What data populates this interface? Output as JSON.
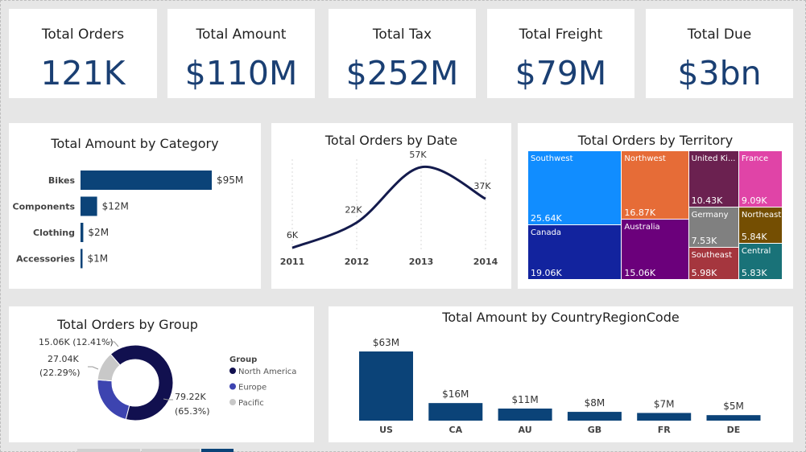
{
  "kpis": [
    {
      "title": "Total Orders",
      "value": "121K"
    },
    {
      "title": "Total Amount",
      "value": "$110M"
    },
    {
      "title": "Total Tax",
      "value": "$252M"
    },
    {
      "title": "Total Freight",
      "value": "$79M"
    },
    {
      "title": "Total Due",
      "value": "$3bn"
    }
  ],
  "titles": {
    "category": "Total Amount by Category",
    "date": "Total Orders by Date",
    "territory": "Total Orders by Territory",
    "group": "Total Orders by Group",
    "country": "Total Amount by CountryRegionCode"
  },
  "colors": {
    "navy": "#0b4378",
    "line": "#141b4d"
  },
  "chart_data": [
    {
      "type": "bar",
      "orientation": "horizontal",
      "title": "Total Amount by Category",
      "categories": [
        "Bikes",
        "Components",
        "Clothing",
        "Accessories"
      ],
      "values": [
        95,
        12,
        2,
        1
      ],
      "labels": [
        "$95M",
        "$12M",
        "$2M",
        "$1M"
      ],
      "color": "#0b4378"
    },
    {
      "type": "line",
      "title": "Total Orders by Date",
      "x": [
        "2011",
        "2012",
        "2013",
        "2014"
      ],
      "values": [
        6,
        22,
        57,
        37
      ],
      "labels": [
        "6K",
        "22K",
        "57K",
        "37K"
      ],
      "ylim": [
        0,
        62
      ],
      "color": "#141b4d"
    },
    {
      "type": "treemap",
      "title": "Total Orders by Territory",
      "cells": [
        {
          "name": "Southwest",
          "value": 25.64,
          "label": "25.64K",
          "color": "#118dff"
        },
        {
          "name": "Canada",
          "value": 19.06,
          "label": "19.06K",
          "color": "#12239e"
        },
        {
          "name": "Northwest",
          "value": 16.87,
          "label": "16.87K",
          "color": "#e66c37"
        },
        {
          "name": "Australia",
          "value": 15.06,
          "label": "15.06K",
          "color": "#6b007b"
        },
        {
          "name": "United Ki...",
          "value": 10.43,
          "label": "10.43K",
          "color": "#6b2150"
        },
        {
          "name": "France",
          "value": 9.09,
          "label": "9.09K",
          "color": "#e044a7"
        },
        {
          "name": "Germany",
          "value": 7.53,
          "label": "7.53K",
          "color": "#808080"
        },
        {
          "name": "Northeast",
          "value": 5.84,
          "label": "5.84K",
          "color": "#744e02"
        },
        {
          "name": "Southeast",
          "value": 5.98,
          "label": "5.98K",
          "color": "#a5363e"
        },
        {
          "name": "Central",
          "value": 5.83,
          "label": "5.83K",
          "color": "#197278"
        }
      ]
    },
    {
      "type": "pie",
      "style": "donut",
      "title": "Total Orders by Group",
      "legend_title": "Group",
      "slices": [
        {
          "name": "North America",
          "value": 79.22,
          "label": "79.22K",
          "pct": "(65.3%)",
          "color": "#11104f"
        },
        {
          "name": "Europe",
          "value": 27.04,
          "label": "27.04K",
          "pct": "(22.29%)",
          "color": "#3d44b0"
        },
        {
          "name": "Pacific",
          "value": 15.06,
          "label": "15.06K",
          "pct": "(12.41%)",
          "color": "#c8c8c8"
        }
      ]
    },
    {
      "type": "bar",
      "title": "Total Amount by CountryRegionCode",
      "categories": [
        "US",
        "CA",
        "AU",
        "GB",
        "FR",
        "DE"
      ],
      "values": [
        63,
        16,
        11,
        8,
        7,
        5
      ],
      "labels": [
        "$63M",
        "$16M",
        "$11M",
        "$8M",
        "$7M",
        "$5M"
      ],
      "color": "#0b4378"
    }
  ]
}
